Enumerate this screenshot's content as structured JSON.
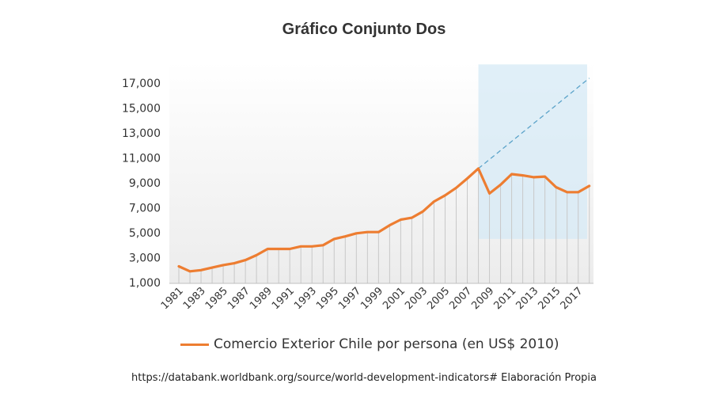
{
  "chart_data": {
    "type": "line",
    "title": "Gráfico Conjunto Dos",
    "xlabel": "",
    "ylabel": "",
    "ylim": [
      1000,
      18000
    ],
    "xlim": [
      1981,
      2018
    ],
    "yticks": [
      1000,
      3000,
      5000,
      7000,
      9000,
      11000,
      13000,
      15000,
      17000
    ],
    "ytick_labels": [
      "1,000",
      "3,000",
      "5,000",
      "7,000",
      "9,000",
      "11,000",
      "13,000",
      "15,000",
      "17,000"
    ],
    "xtick_labels": [
      "1981",
      "1983",
      "1985",
      "1987",
      "1989",
      "1991",
      "1993",
      "1995",
      "1997",
      "1999",
      "2001",
      "2003",
      "2005",
      "2007",
      "2009",
      "2011",
      "2013",
      "2015",
      "2017"
    ],
    "series": [
      {
        "name": "Comercio Exterior Chile por persona (en US$ 2010)",
        "color": "#ED7D31",
        "x": [
          1981,
          1982,
          1983,
          1984,
          1985,
          1986,
          1987,
          1988,
          1989,
          1990,
          1991,
          1992,
          1993,
          1994,
          1995,
          1996,
          1997,
          1998,
          1999,
          2000,
          2001,
          2002,
          2003,
          2004,
          2005,
          2006,
          2007,
          2008,
          2009,
          2010,
          2011,
          2012,
          2013,
          2014,
          2015,
          2016,
          2017,
          2018
        ],
        "values": [
          2300,
          1900,
          2000,
          2200,
          2400,
          2550,
          2800,
          3200,
          3700,
          3700,
          3700,
          3900,
          3900,
          4000,
          4500,
          4700,
          4950,
          5050,
          5050,
          5600,
          6050,
          6200,
          6700,
          7500,
          8000,
          8600,
          9350,
          10150,
          8150,
          8850,
          9700,
          9600,
          9450,
          9500,
          8650,
          8250,
          8250,
          8750
        ]
      }
    ],
    "trend_line": {
      "x": [
        2008,
        2018
      ],
      "values": [
        10150,
        17400
      ],
      "color": "#5BA3C9",
      "style": "dashed"
    },
    "highlight_region": {
      "x_range": [
        2008,
        2018.6
      ],
      "y_range": [
        4500,
        18500
      ],
      "color": "#D6E9F6"
    },
    "grid": "vertical-drop-lines",
    "legend_position": "bottom",
    "source": "https://databank.worldbank.org/source/world-development-indicators# Elaboración Propia"
  }
}
